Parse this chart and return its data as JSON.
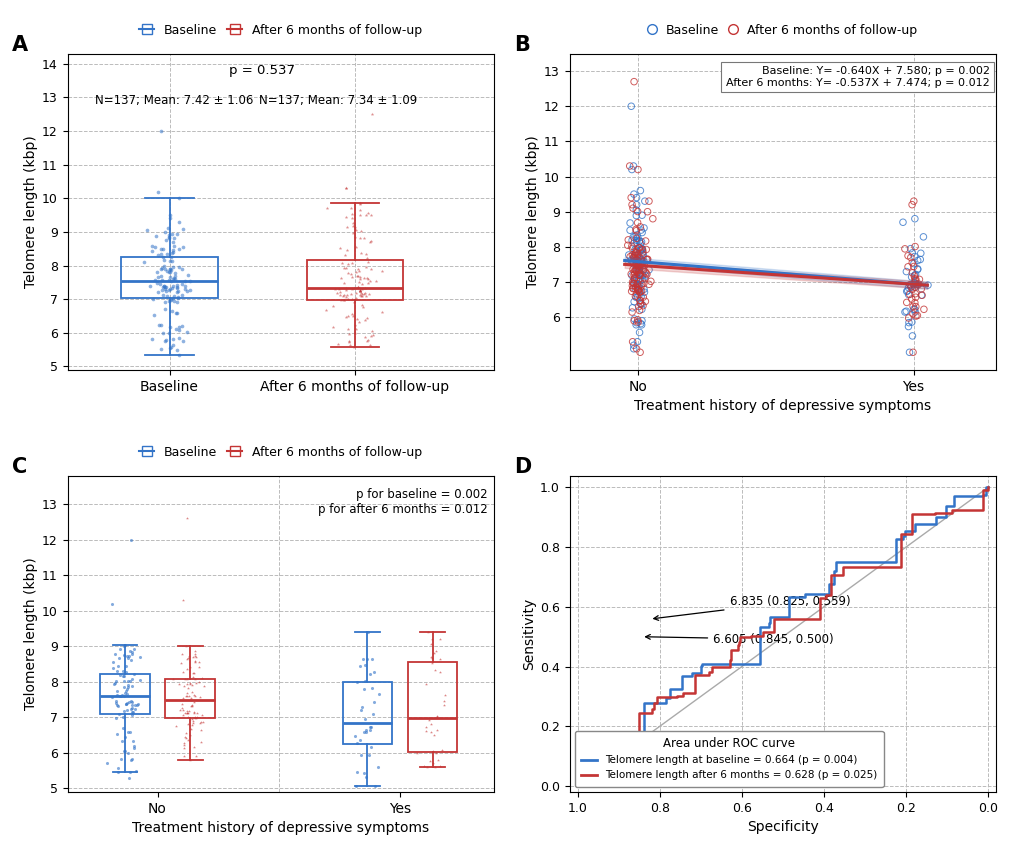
{
  "panel_A": {
    "title_label": "A",
    "ylabel": "Telomere length (kbp)",
    "xlabel_baseline": "Baseline",
    "xlabel_followup": "After 6 months of follow-up",
    "p_value": "p = 0.537",
    "baseline_stats": "N=137; Mean: 7.42 ± 1.06",
    "followup_stats": "N=137; Mean: 7.34 ± 1.09",
    "ylim": [
      4.9,
      14.3
    ],
    "yticks": [
      5,
      6,
      7,
      8,
      9,
      10,
      11,
      12,
      13,
      14
    ],
    "baseline_color": "#3374C8",
    "followup_color": "#C43535",
    "legend_label_baseline": "Baseline",
    "legend_label_followup": "After 6 months of follow-up"
  },
  "panel_B": {
    "title_label": "B",
    "ylabel": "Telomere length (kbp)",
    "xlabel": "Treatment history of depressive symptoms",
    "xtick_labels": [
      "No",
      "Yes"
    ],
    "ylim": [
      4.5,
      13.5
    ],
    "yticks": [
      6,
      7,
      8,
      9,
      10,
      11,
      12,
      13
    ],
    "annotation_line1": "Baseline: Y= -0.640X + 7.580; p = 0.002",
    "annotation_line2": "After 6 months: Y= -0.537X + 7.474; p = 0.012",
    "baseline_slope": -0.64,
    "baseline_intercept": 7.58,
    "followup_slope": -0.537,
    "followup_intercept": 7.474,
    "baseline_color": "#3374C8",
    "followup_color": "#C43535",
    "legend_label_baseline": "Baseline",
    "legend_label_followup": "After 6 months of follow-up"
  },
  "panel_C": {
    "title_label": "C",
    "ylabel": "Telomere length (kbp)",
    "xlabel": "Treatment history of depressive symptoms",
    "xtick_labels": [
      "No",
      "Yes"
    ],
    "p_baseline": "p for baseline = 0.002",
    "p_followup": "p for after 6 months = 0.012",
    "ylim": [
      4.9,
      13.8
    ],
    "yticks": [
      5,
      6,
      7,
      8,
      9,
      10,
      11,
      12,
      13
    ],
    "baseline_color": "#3374C8",
    "followup_color": "#C43535",
    "legend_label_baseline": "Baseline",
    "legend_label_followup": "After 6 months of follow-up"
  },
  "panel_D": {
    "title_label": "D",
    "xlabel": "Specificity",
    "ylabel": "Sensitivity",
    "xticks": [
      1.0,
      0.8,
      0.6,
      0.4,
      0.2,
      0.0
    ],
    "yticks": [
      0.0,
      0.2,
      0.4,
      0.6,
      0.8,
      1.0
    ],
    "annotation1": "6.835 (0.825, 0.559)",
    "annotation2": "6.605 (0.845, 0.500)",
    "ann1_spec": 0.825,
    "ann1_sens": 0.559,
    "ann2_spec": 0.845,
    "ann2_sens": 0.5,
    "baseline_color": "#3374C8",
    "followup_color": "#C43535",
    "legend_title": "Area under ROC curve",
    "legend_baseline": "Telomere length at baseline = 0.664 (p = 0.004)",
    "legend_followup": "Telomere length after 6 months = 0.628 (p = 0.025)"
  },
  "background_color": "#FFFFFF",
  "grid_color": "#BBBBBB",
  "font_size": 9,
  "label_font_size": 15
}
